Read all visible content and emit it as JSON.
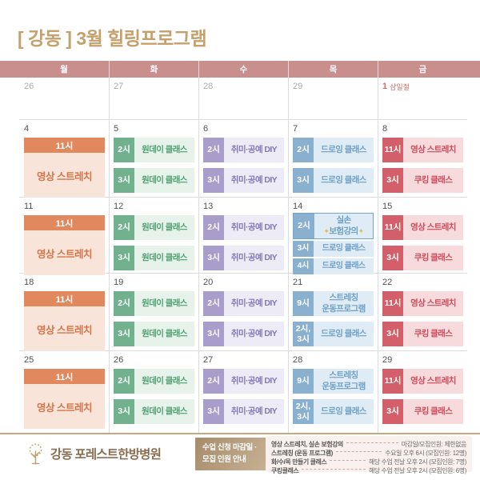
{
  "title": "[ 강동 ] 3월 힐링프로그램",
  "weekdays": [
    "월",
    "화",
    "수",
    "목",
    "금"
  ],
  "sparkle_char": "✦",
  "colors": {
    "title_gold": "#C5A06B",
    "weekday_band": "#C98F8D",
    "holiday_red": "#C9706B",
    "prev_month_gray": "#ABABAB",
    "date_gray": "#4F4F4F",
    "grid_line": "#DCDCDC",
    "footer_separator": "#CBA87C",
    "brand_brown": "#8A6E52",
    "info_box_gradient": [
      "#A68C6B",
      "#C9B295"
    ],
    "notes_bg": "#FAF0ED",
    "sparkle_gold": "#E9B94D",
    "highlight_border": "#76A3C8",
    "themes": {
      "mon": {
        "chip": "#E2885F",
        "body": "#F9E4D9",
        "text": "#D4764B"
      },
      "tue": {
        "chip": "#72B18D",
        "body": "#E7F2EB",
        "text": "#4FA071"
      },
      "wed": {
        "chip": "#A99DCB",
        "body": "#EDEBF6",
        "text": "#8679B5"
      },
      "thu": {
        "chip": "#8AB0CF",
        "body": "#DFECF5",
        "text": "#6FA0C7"
      },
      "fri": {
        "chip": "#D35F6B",
        "body": "#F7DADC",
        "text": "#CE4B5B"
      }
    }
  },
  "calendar": {
    "weeks": [
      {
        "days": [
          {
            "date": "26",
            "muted": true,
            "events": []
          },
          {
            "date": "27",
            "muted": true,
            "events": []
          },
          {
            "date": "28",
            "muted": true,
            "events": []
          },
          {
            "date": "29",
            "muted": true,
            "events": []
          },
          {
            "date": "1",
            "holiday": "삼일절",
            "events": []
          }
        ]
      },
      {
        "days": [
          {
            "date": "4",
            "theme": "mon",
            "events": [
              {
                "kind": "banner",
                "time": "11시",
                "title": "영상 스트레치"
              }
            ]
          },
          {
            "date": "5",
            "theme": "tue",
            "events": [
              {
                "time": "2시",
                "title": "원데이 클래스"
              },
              {
                "time": "3시",
                "title": "원데이 클래스"
              }
            ]
          },
          {
            "date": "6",
            "theme": "wed",
            "events": [
              {
                "time": "2시",
                "title": "취미·공예 DIY"
              },
              {
                "time": "3시",
                "title": "취미·공예 DIY"
              }
            ]
          },
          {
            "date": "7",
            "theme": "thu",
            "events": [
              {
                "time": "2시",
                "title": "드로잉 클래스"
              },
              {
                "time": "3시",
                "title": "드로잉 클래스"
              }
            ]
          },
          {
            "date": "8",
            "theme": "fri",
            "events": [
              {
                "time": "11시",
                "title": "영상 스트레치"
              },
              {
                "time": "3시",
                "title": "쿠킹 클래스"
              }
            ]
          }
        ]
      },
      {
        "days": [
          {
            "date": "11",
            "theme": "mon",
            "events": [
              {
                "kind": "banner",
                "time": "11시",
                "title": "영상 스트레치"
              }
            ]
          },
          {
            "date": "12",
            "theme": "tue",
            "events": [
              {
                "time": "2시",
                "title": "원데이 클래스"
              },
              {
                "time": "3시",
                "title": "원데이 클래스"
              }
            ]
          },
          {
            "date": "13",
            "theme": "wed",
            "events": [
              {
                "time": "2시",
                "title": "취미·공예 DIY"
              },
              {
                "time": "3시",
                "title": "취미·공예 DIY"
              }
            ]
          },
          {
            "date": "14",
            "theme": "thu",
            "events": [
              {
                "time": "2시",
                "title_lines": [
                  "실손",
                  "보험강의"
                ],
                "highlight": true,
                "sparkle": true
              },
              {
                "time": "3시",
                "title": "드로잉 클래스",
                "compact": true
              },
              {
                "time": "4시",
                "title": "드로잉 클래스",
                "compact": true
              }
            ]
          },
          {
            "date": "15",
            "theme": "fri",
            "events": [
              {
                "time": "11시",
                "title": "영상 스트레치"
              },
              {
                "time": "3시",
                "title": "쿠킹 클래스"
              }
            ]
          }
        ]
      },
      {
        "days": [
          {
            "date": "18",
            "theme": "mon",
            "events": [
              {
                "kind": "banner",
                "time": "11시",
                "title": "영상 스트레치"
              }
            ]
          },
          {
            "date": "19",
            "theme": "tue",
            "events": [
              {
                "time": "2시",
                "title": "원데이 클래스"
              },
              {
                "time": "3시",
                "title": "원데이 클래스"
              }
            ]
          },
          {
            "date": "20",
            "theme": "wed",
            "events": [
              {
                "time": "2시",
                "title": "취미·공예 DIY"
              },
              {
                "time": "3시",
                "title": "취미·공예 DIY"
              }
            ]
          },
          {
            "date": "21",
            "theme": "thu",
            "events": [
              {
                "time": "9시",
                "title_lines": [
                  "스트레칭",
                  "운동프로그램"
                ]
              },
              {
                "time_lines": [
                  "2시,",
                  "3시"
                ],
                "title": "드로잉 클래스"
              }
            ]
          },
          {
            "date": "22",
            "theme": "fri",
            "events": [
              {
                "time": "11시",
                "title": "영상 스트레치"
              },
              {
                "time": "3시",
                "title": "쿠킹 클래스"
              }
            ]
          }
        ]
      },
      {
        "days": [
          {
            "date": "25",
            "theme": "mon",
            "events": [
              {
                "kind": "banner",
                "time": "11시",
                "title": "영상 스트레치"
              }
            ]
          },
          {
            "date": "26",
            "theme": "tue",
            "events": [
              {
                "time": "2시",
                "title": "원데이 클래스"
              },
              {
                "time": "3시",
                "title": "원데이 클래스"
              }
            ]
          },
          {
            "date": "27",
            "theme": "wed",
            "events": [
              {
                "time": "2시",
                "title": "취미·공예 DIY"
              },
              {
                "time": "3시",
                "title": "취미·공예 DIY"
              }
            ]
          },
          {
            "date": "28",
            "theme": "thu",
            "events": [
              {
                "time": "9시",
                "title_lines": [
                  "스트레칭",
                  "운동프로그램"
                ]
              },
              {
                "time_lines": [
                  "2시,",
                  "3시"
                ],
                "title": "드로잉 클래스"
              }
            ]
          },
          {
            "date": "29",
            "theme": "fri",
            "events": [
              {
                "time": "11시",
                "title": "영상 스트레치"
              },
              {
                "time": "3시",
                "title": "쿠킹 클래스"
              }
            ]
          }
        ]
      }
    ]
  },
  "footer": {
    "hospital_name": "강동 포레스트한방병원",
    "logo_icon": "tree-icon",
    "info_box_lines": [
      "수업 신청 마감일 ·",
      "모집 인원 안내"
    ],
    "notes": [
      {
        "label": "영상 스트레치, 실손 보험강의",
        "value": "마감일/모집인원: 제한없음"
      },
      {
        "label": "스트레칭 (운동 프로그램)",
        "value": "수요일 오후 6시 (모집인원: 12명)"
      },
      {
        "label": "화/수/목 만들기 클래스",
        "value": "해당 수업 전날 오후 2시 (모집인원: 7명)"
      },
      {
        "label": "쿠킹클래스",
        "value": "해당 수업 전날 오후 2시 (모집인원: 6명)"
      }
    ]
  }
}
